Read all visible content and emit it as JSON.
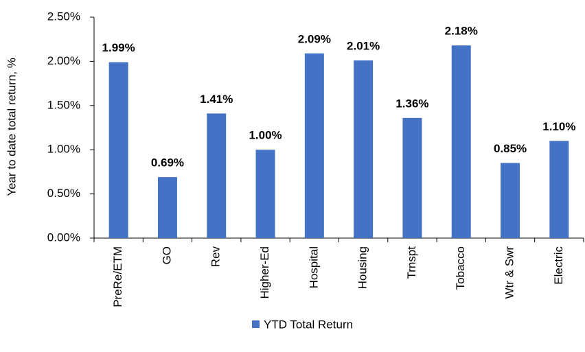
{
  "chart_data": {
    "type": "bar",
    "y_label": "Year to date total return, %",
    "categories": [
      "PreRe/ETM",
      "GO",
      "Rev",
      "Higher-Ed",
      "Hospital",
      "Housing",
      "Trnspt",
      "Tobacco",
      "Wtr & Swr",
      "Electric"
    ],
    "series": [
      {
        "name": "YTD Total Return",
        "color": "#4472c4",
        "values": [
          1.99,
          0.69,
          1.41,
          1.0,
          2.09,
          2.01,
          1.36,
          2.18,
          0.85,
          1.1
        ],
        "value_labels": [
          "1.99%",
          "0.69%",
          "1.41%",
          "1.00%",
          "2.09%",
          "2.01%",
          "1.36%",
          "2.18%",
          "0.85%",
          "1.10%"
        ]
      }
    ],
    "ylim": [
      0,
      2.5
    ],
    "yticks": [
      {
        "value": 0,
        "label": "0.00%"
      },
      {
        "value": 0.5,
        "label": "0.50%"
      },
      {
        "value": 1,
        "label": "1.00%"
      },
      {
        "value": 1.5,
        "label": "1.50%"
      },
      {
        "value": 2,
        "label": "2.00%"
      },
      {
        "value": 2.5,
        "label": "2.50%"
      }
    ],
    "grid": false,
    "legend": "bottom"
  }
}
